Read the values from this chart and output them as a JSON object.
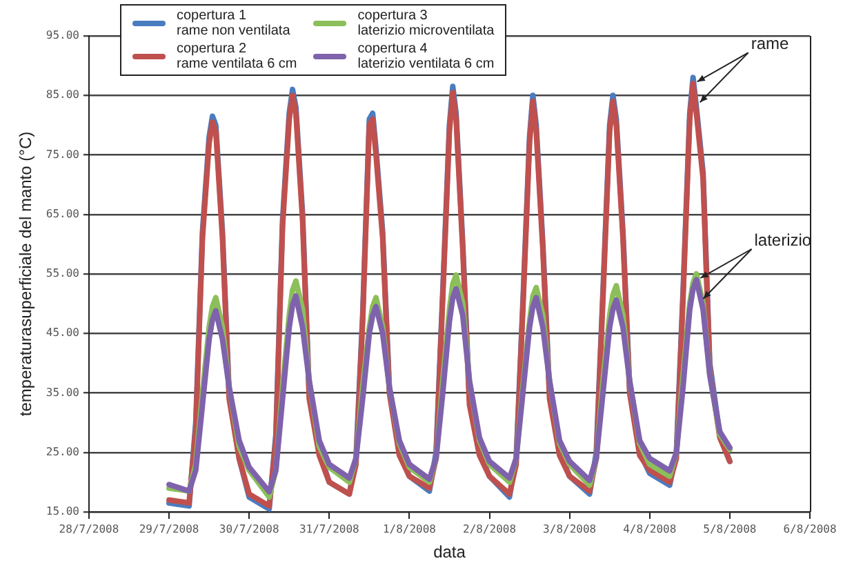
{
  "chart_data": {
    "type": "line",
    "xlabel": "data",
    "ylabel": "temperaturasuperficiale del manto (°C)",
    "x": [
      "2008-07-29T00:00",
      "2008-07-29T06:00",
      "2008-07-29T08:00",
      "2008-07-29T10:00",
      "2008-07-29T12:00",
      "2008-07-29T13:00",
      "2008-07-29T14:00",
      "2008-07-29T16:00",
      "2008-07-29T18:00",
      "2008-07-29T21:00",
      "2008-07-30T00:00",
      "2008-07-30T06:00",
      "2008-07-30T08:00",
      "2008-07-30T10:00",
      "2008-07-30T12:00",
      "2008-07-30T13:00",
      "2008-07-30T14:00",
      "2008-07-30T16:00",
      "2008-07-30T18:00",
      "2008-07-30T21:00",
      "2008-07-31T00:00",
      "2008-07-31T06:00",
      "2008-07-31T08:00",
      "2008-07-31T10:00",
      "2008-07-31T12:00",
      "2008-07-31T13:00",
      "2008-07-31T14:00",
      "2008-07-31T16:00",
      "2008-07-31T18:00",
      "2008-07-31T21:00",
      "2008-08-01T00:00",
      "2008-08-01T06:00",
      "2008-08-01T08:00",
      "2008-08-01T10:00",
      "2008-08-01T12:00",
      "2008-08-01T13:00",
      "2008-08-01T14:00",
      "2008-08-01T16:00",
      "2008-08-01T18:00",
      "2008-08-01T21:00",
      "2008-08-02T00:00",
      "2008-08-02T06:00",
      "2008-08-02T08:00",
      "2008-08-02T10:00",
      "2008-08-02T12:00",
      "2008-08-02T13:00",
      "2008-08-02T14:00",
      "2008-08-02T16:00",
      "2008-08-02T18:00",
      "2008-08-02T21:00",
      "2008-08-03T00:00",
      "2008-08-03T06:00",
      "2008-08-03T08:00",
      "2008-08-03T10:00",
      "2008-08-03T12:00",
      "2008-08-03T13:00",
      "2008-08-03T14:00",
      "2008-08-03T16:00",
      "2008-08-03T18:00",
      "2008-08-03T21:00",
      "2008-08-04T00:00",
      "2008-08-04T06:00",
      "2008-08-04T08:00",
      "2008-08-04T10:00",
      "2008-08-04T12:00",
      "2008-08-04T13:00",
      "2008-08-04T14:00",
      "2008-08-04T16:00",
      "2008-08-04T18:00",
      "2008-08-04T21:00",
      "2008-08-05T00:00"
    ],
    "series": [
      {
        "name": "copertura 1\nrame non ventilata",
        "color": "#4a7cc0",
        "values": [
          16.5,
          16,
          30,
          62,
          78,
          81.5,
          80,
          62,
          35,
          24,
          17.5,
          15.5,
          28,
          64,
          82,
          86,
          83,
          65,
          35,
          25,
          20,
          18,
          24,
          48,
          81,
          82,
          76,
          62,
          36,
          25,
          21,
          18.5,
          25,
          52,
          80,
          86.5,
          82,
          60,
          34,
          25,
          21,
          17.5,
          24,
          50,
          78,
          85,
          80,
          60,
          35,
          25,
          21,
          18,
          25,
          52,
          80,
          85,
          81,
          62,
          36,
          25,
          21.5,
          19.5,
          25,
          52,
          82,
          88,
          83,
          72,
          40,
          28,
          23.5
        ]
      },
      {
        "name": "copertura 2\nrame ventilata 6 cm",
        "color": "#c0504d",
        "values": [
          17,
          16.5,
          29,
          61,
          77,
          80.5,
          79,
          61,
          34,
          24,
          18,
          16,
          27,
          63,
          81,
          85,
          82,
          64,
          34,
          24.5,
          20,
          18,
          23,
          47,
          80,
          81,
          75,
          61,
          35,
          24.5,
          21,
          19,
          24,
          51,
          79,
          85.5,
          81,
          59,
          33,
          24.5,
          21,
          18,
          23,
          49,
          77,
          84,
          79,
          59,
          34,
          24.5,
          21,
          18.5,
          24,
          51,
          79,
          84,
          80,
          61,
          35,
          24.5,
          22,
          20,
          24,
          51,
          81,
          87,
          82,
          71,
          39,
          27.5,
          23.5
        ]
      },
      {
        "name": "copertura 3\nlaterizio microventilata",
        "color": "#8cbf5a",
        "values": [
          19,
          18.5,
          23,
          35,
          46,
          49.5,
          51,
          46,
          36,
          26,
          22,
          17.5,
          22,
          36,
          48,
          52.3,
          53.8,
          49,
          37,
          26,
          22.5,
          20,
          24,
          36,
          46,
          49.5,
          51,
          46,
          36,
          26.5,
          22.5,
          20,
          24,
          37,
          49,
          53.3,
          54.8,
          50,
          37,
          27,
          23,
          20,
          24,
          36,
          47,
          51.2,
          52.7,
          48,
          37,
          26.5,
          23,
          19.5,
          24,
          37,
          48,
          51.5,
          53,
          48,
          37,
          26.5,
          23,
          21,
          25,
          38,
          50,
          53.5,
          55,
          50,
          38,
          28,
          25.5
        ]
      },
      {
        "name": "copertura 4\nlaterizio ventilata 6 cm",
        "color": "#7f62ac",
        "values": [
          19.6,
          18.5,
          22,
          33,
          44,
          47.3,
          48.8,
          44,
          36,
          27,
          22.5,
          18.4,
          22,
          34,
          46,
          49.8,
          51.3,
          46,
          37,
          27,
          23,
          20.7,
          24,
          34,
          45,
          48,
          49.5,
          45,
          36,
          27,
          23,
          20.5,
          24,
          35,
          47,
          51,
          52.5,
          48,
          37,
          27.5,
          23.5,
          20.7,
          24,
          35,
          46,
          49.5,
          51,
          46,
          37,
          27,
          23.5,
          20.3,
          24,
          35,
          46,
          49.1,
          50.6,
          46,
          37,
          27,
          24,
          21.9,
          25,
          36,
          49,
          52.5,
          54,
          49,
          38,
          28.5,
          25.8
        ]
      }
    ],
    "xlim": [
      "2008-07-28",
      "2008-08-06"
    ],
    "xticks": [
      {
        "value": "2008-07-28",
        "label": "28/7/2008"
      },
      {
        "value": "2008-07-29",
        "label": "29/7/2008"
      },
      {
        "value": "2008-07-30",
        "label": "30/7/2008"
      },
      {
        "value": "2008-07-31",
        "label": "31/7/2008"
      },
      {
        "value": "2008-08-01",
        "label": "1/8/2008"
      },
      {
        "value": "2008-08-02",
        "label": "2/8/2008"
      },
      {
        "value": "2008-08-03",
        "label": "3/8/2008"
      },
      {
        "value": "2008-08-04",
        "label": "4/8/2008"
      },
      {
        "value": "2008-08-05",
        "label": "5/8/2008"
      },
      {
        "value": "2008-08-06",
        "label": "6/8/2008"
      }
    ],
    "ylim": [
      15,
      95
    ],
    "yticks": [
      {
        "value": 15,
        "label": "15.00"
      },
      {
        "value": 25,
        "label": "25.00"
      },
      {
        "value": 35,
        "label": "35.00"
      },
      {
        "value": 45,
        "label": "45.00"
      },
      {
        "value": 55,
        "label": "55.00"
      },
      {
        "value": 65,
        "label": "65.00"
      },
      {
        "value": 75,
        "label": "75.00"
      },
      {
        "value": 85,
        "label": "85.00"
      },
      {
        "value": 95,
        "label": "95.00"
      }
    ],
    "annotations": [
      {
        "text": "rame",
        "x": "2008-08-04T13:00",
        "y": 88
      },
      {
        "text": "laterizio",
        "x": "2008-08-04T14:00",
        "y": 55
      }
    ],
    "grid": "y",
    "legend": "top left",
    "marker": "none",
    "line_style": "solid"
  }
}
